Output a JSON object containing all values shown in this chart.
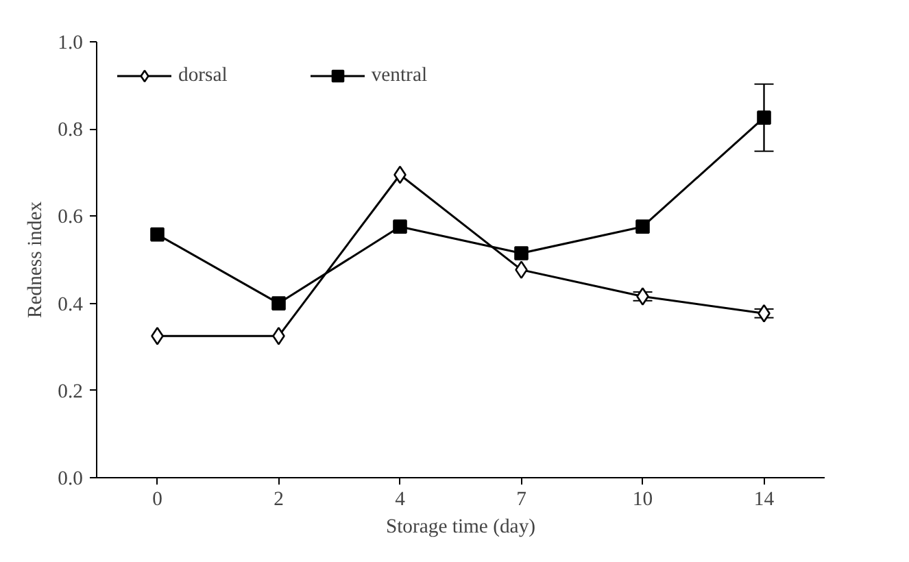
{
  "chart_data": {
    "type": "line",
    "xlabel": "Storage time (day)",
    "ylabel": "Redness index",
    "categories": [
      "0",
      "2",
      "4",
      "7",
      "10",
      "14"
    ],
    "series": [
      {
        "name": "dorsal",
        "color": "#000000",
        "marker": "diamond",
        "values": [
          0.325,
          0.325,
          0.695,
          0.477,
          0.416,
          0.377
        ],
        "errors": [
          null,
          null,
          null,
          null,
          0.01,
          0.01
        ]
      },
      {
        "name": "ventral",
        "color": "#000000",
        "marker": "square",
        "values": [
          0.558,
          0.4,
          0.576,
          0.515,
          0.576,
          0.826
        ],
        "errors": [
          null,
          null,
          null,
          null,
          null,
          0.077
        ]
      }
    ],
    "ylim": [
      0,
      1.0
    ],
    "yticks": [
      {
        "value": 0,
        "label": "0.0"
      },
      0.2,
      0.4,
      0.6,
      0.8,
      {
        "value": 1.0,
        "label": "1.0"
      }
    ],
    "grid": false,
    "legend": "top left",
    "line_style": "solid"
  }
}
